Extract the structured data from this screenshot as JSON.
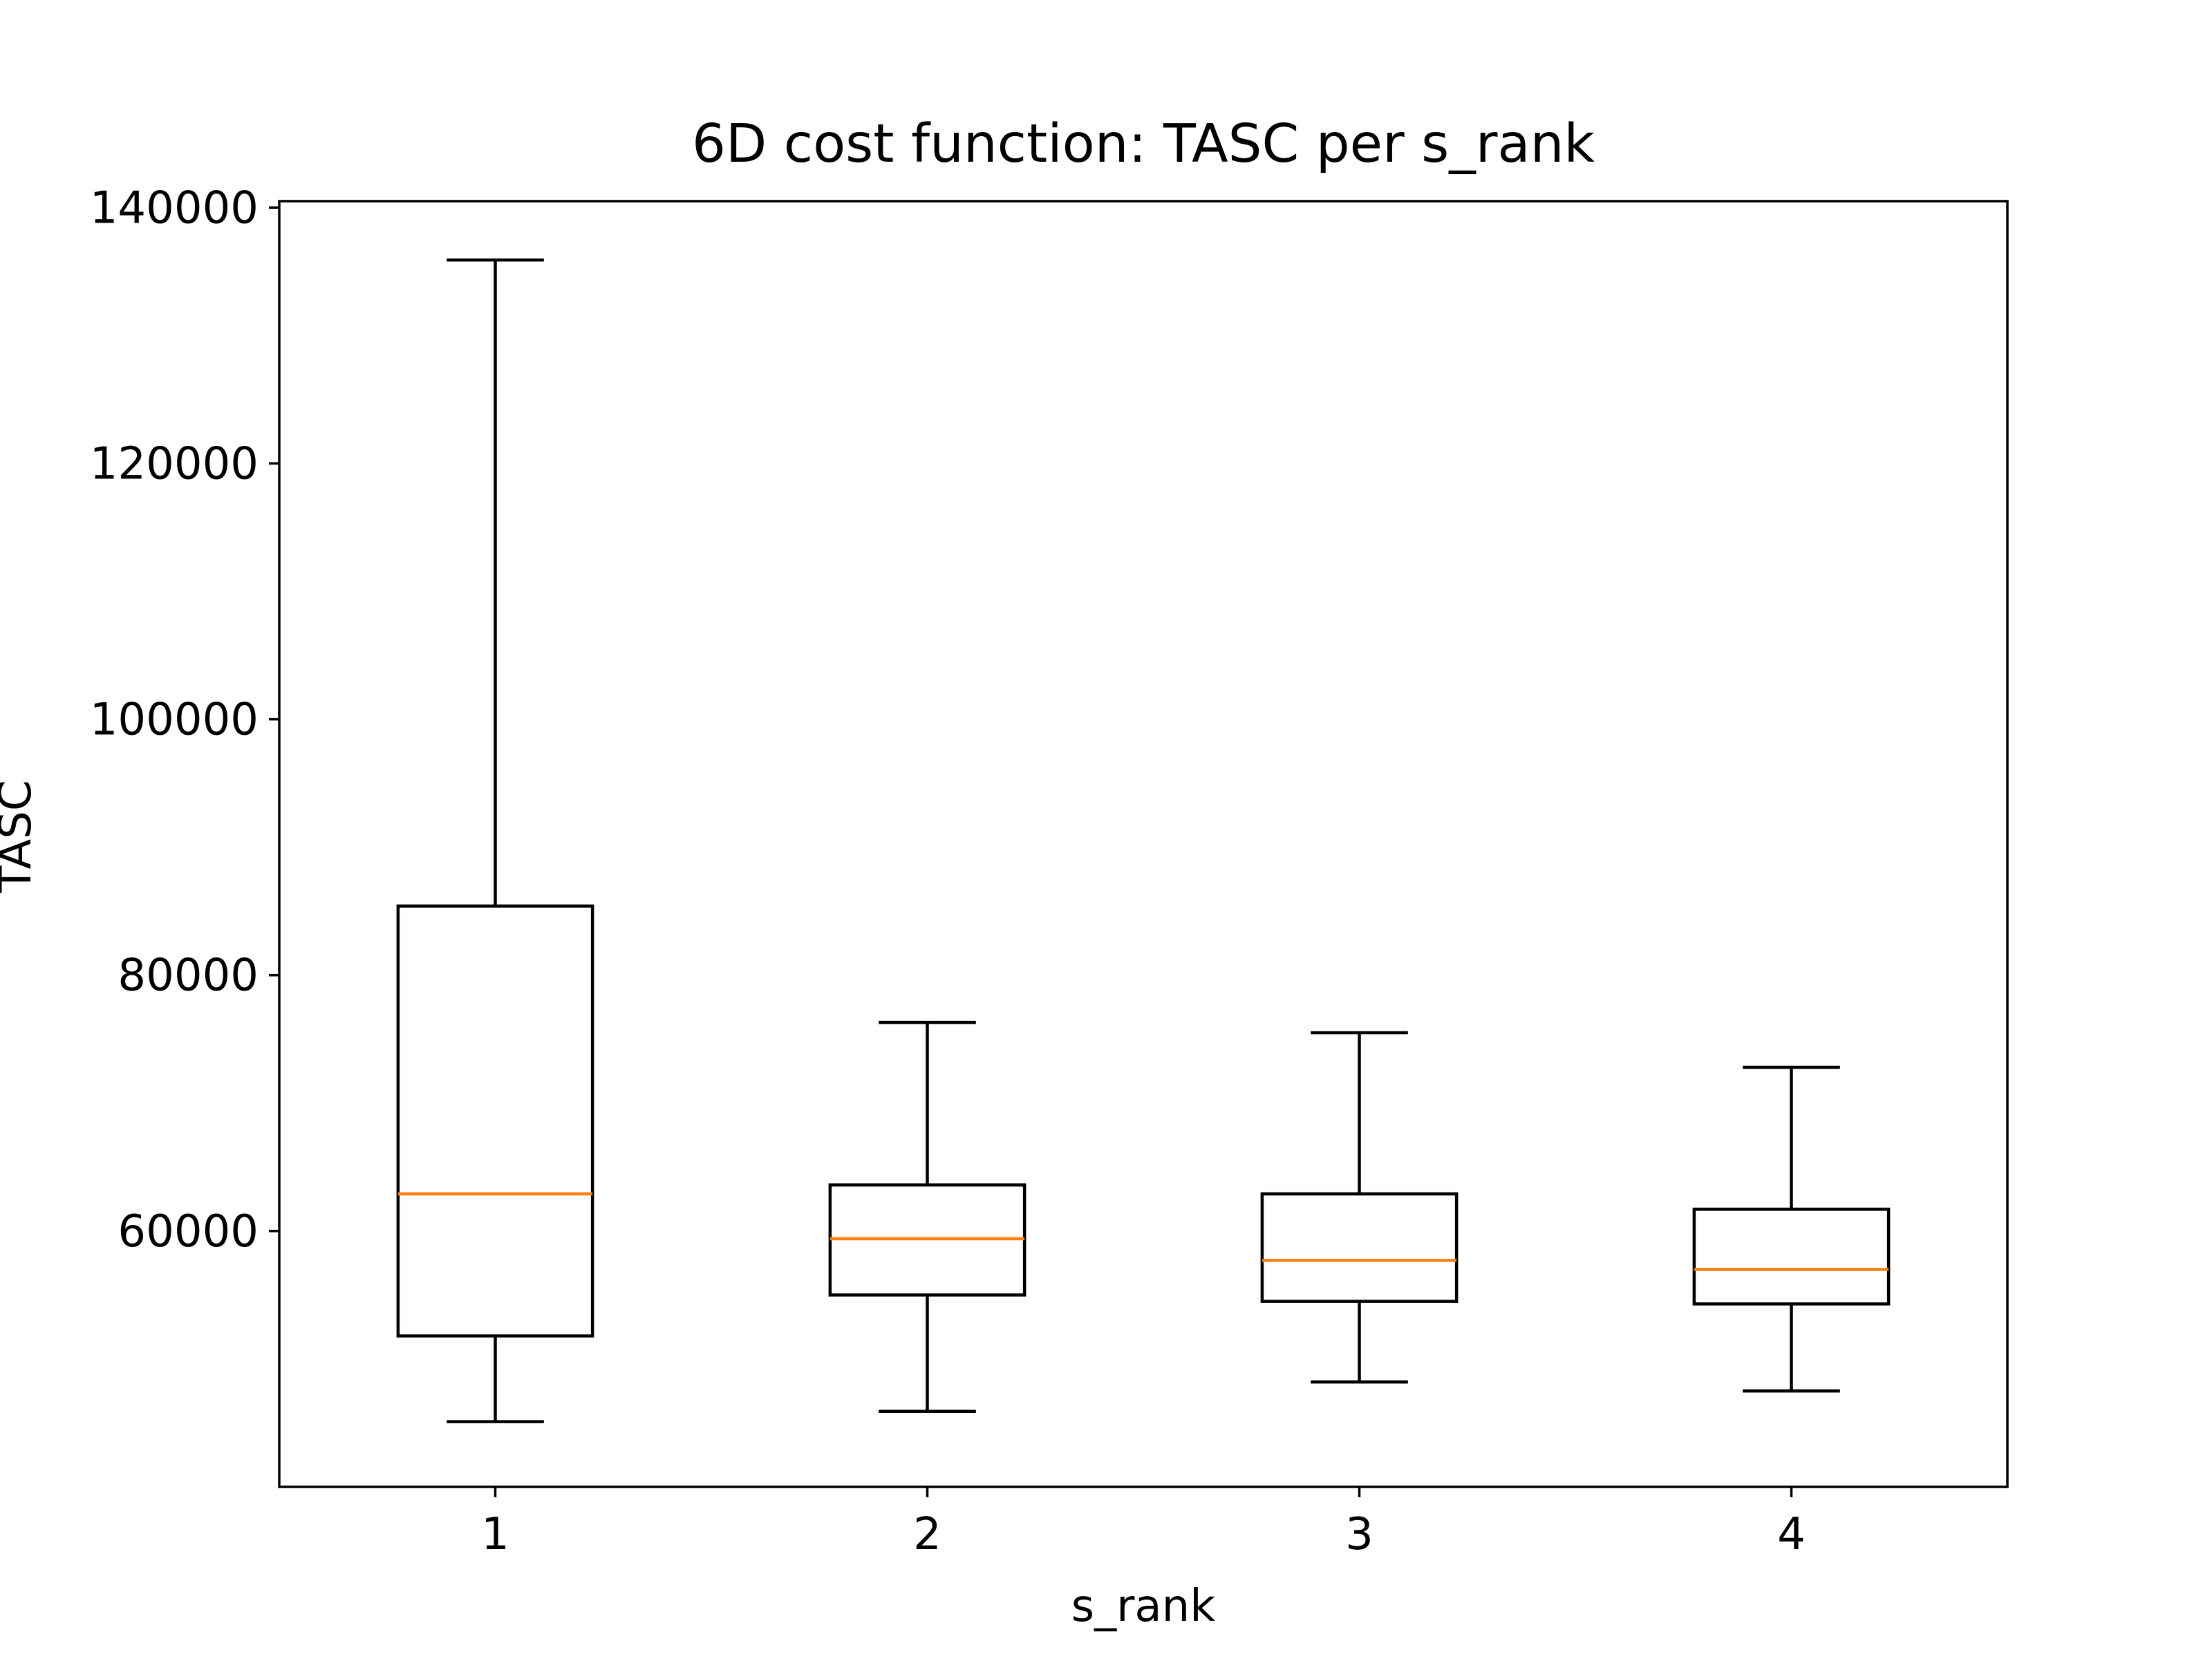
{
  "chart_data": {
    "type": "box",
    "title": "6D cost function: TASC per s_rank",
    "xlabel": "s_rank",
    "ylabel": "TASC",
    "ylim": [
      40000,
      140500
    ],
    "yticks": [
      60000,
      80000,
      100000,
      120000,
      140000
    ],
    "grid": false,
    "legend": "none",
    "categories": [
      "1",
      "2",
      "3",
      "4"
    ],
    "boxes": [
      {
        "category": "1",
        "whisker_low": 45100,
        "q1": 51800,
        "median": 62900,
        "q3": 85400,
        "whisker_high": 135900
      },
      {
        "category": "2",
        "whisker_low": 45900,
        "q1": 55000,
        "median": 59400,
        "q3": 63600,
        "whisker_high": 76300
      },
      {
        "category": "3",
        "whisker_low": 48200,
        "q1": 54500,
        "median": 57700,
        "q3": 62900,
        "whisker_high": 75500
      },
      {
        "category": "4",
        "whisker_low": 47500,
        "q1": 54300,
        "median": 57000,
        "q3": 61700,
        "whisker_high": 72800
      }
    ],
    "colors": {
      "box": "#000000",
      "median": "#ff7f0e",
      "axes": "#000000"
    }
  }
}
